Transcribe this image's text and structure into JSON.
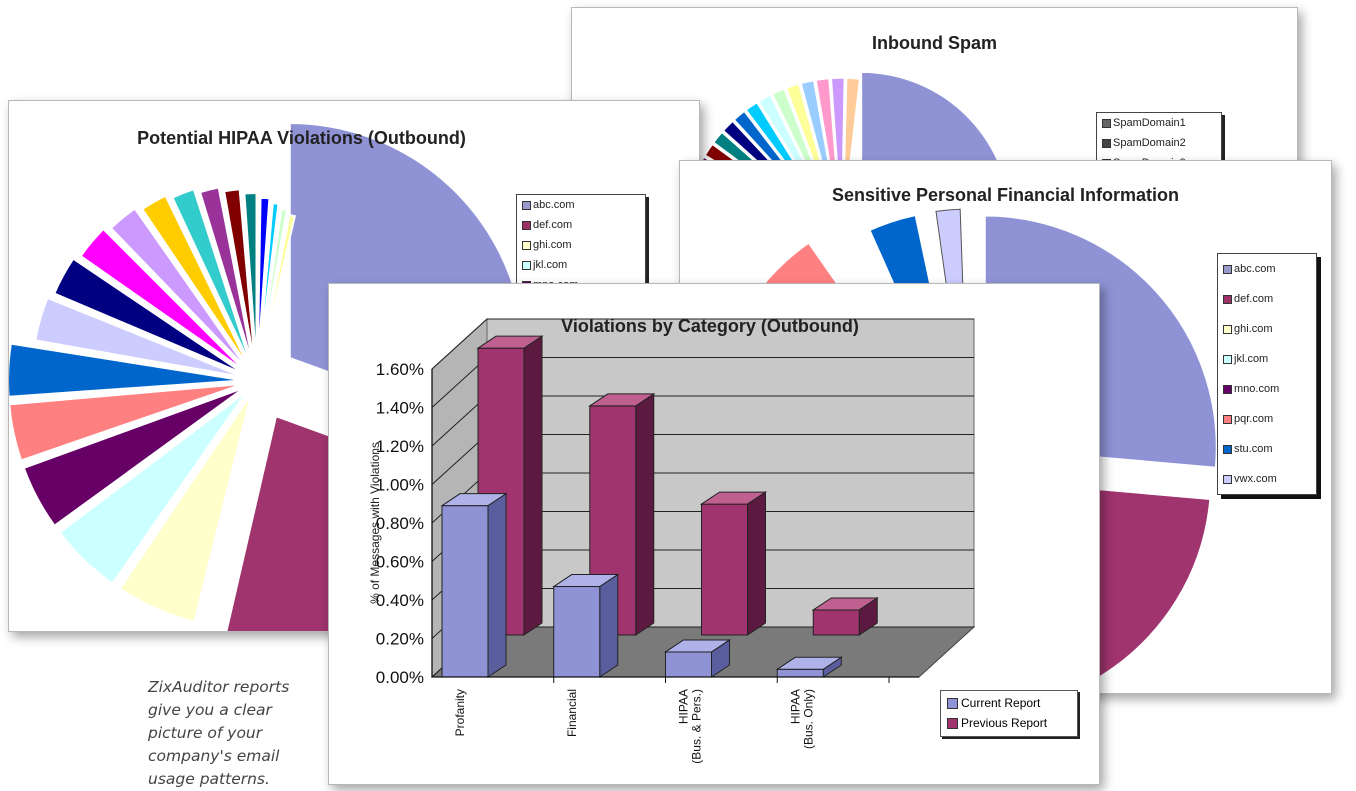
{
  "caption": "ZixAuditor reports give you a clear picture of your company's email usage patterns.",
  "spam_card": {
    "title": "Inbound Spam",
    "legend": [
      "SpamDomain1",
      "SpamDomain2",
      "SpamDomain3"
    ]
  },
  "hipaa_card": {
    "title": "Potential HIPAA Violations (Outbound)",
    "legend": [
      "abc.com",
      "def.com",
      "ghi.com",
      "jkl.com",
      "mno.com"
    ]
  },
  "financial_card": {
    "title": "Sensitive Personal Financial Information",
    "legend": [
      "abc.com",
      "def.com",
      "ghi.com",
      "jkl.com",
      "mno.com",
      "pqr.com",
      "stu.com",
      "vwx.com"
    ]
  },
  "colors": {
    "current": "#8f93d6",
    "previous": "#a0346e",
    "wall": "#c8c8c8",
    "legend_swatches": [
      "#9999cc",
      "#993366",
      "#ffffcc",
      "#ccffff",
      "#660066",
      "#ff8080",
      "#0066cc",
      "#ccccff"
    ]
  },
  "chart_data": {
    "type": "bar",
    "title": "Violations by Category (Outbound)",
    "ylabel": "% of Messages with Violations",
    "xlabel": "",
    "categories": [
      "Profanity",
      "Financial",
      "HIPAA (Bus. & Pers.)",
      "HIPAA (Bus. Only)"
    ],
    "category_lines": [
      [
        "Profanity"
      ],
      [
        "Financial"
      ],
      [
        "HIPAA",
        "(Bus. & Pers.)"
      ],
      [
        "HIPAA",
        "(Bus. Only)"
      ]
    ],
    "series": [
      {
        "name": "Current Report",
        "values": [
          0.0089,
          0.0047,
          0.0013,
          0.0004
        ]
      },
      {
        "name": "Previous Report",
        "values": [
          0.0149,
          0.0119,
          0.0068,
          0.0013
        ]
      }
    ],
    "ylim": [
      0,
      0.016
    ],
    "yticks": [
      "0.00%",
      "0.20%",
      "0.40%",
      "0.60%",
      "0.80%",
      "1.00%",
      "1.20%",
      "1.40%",
      "1.60%"
    ],
    "legend_position": "bottom-right",
    "grid": true
  }
}
